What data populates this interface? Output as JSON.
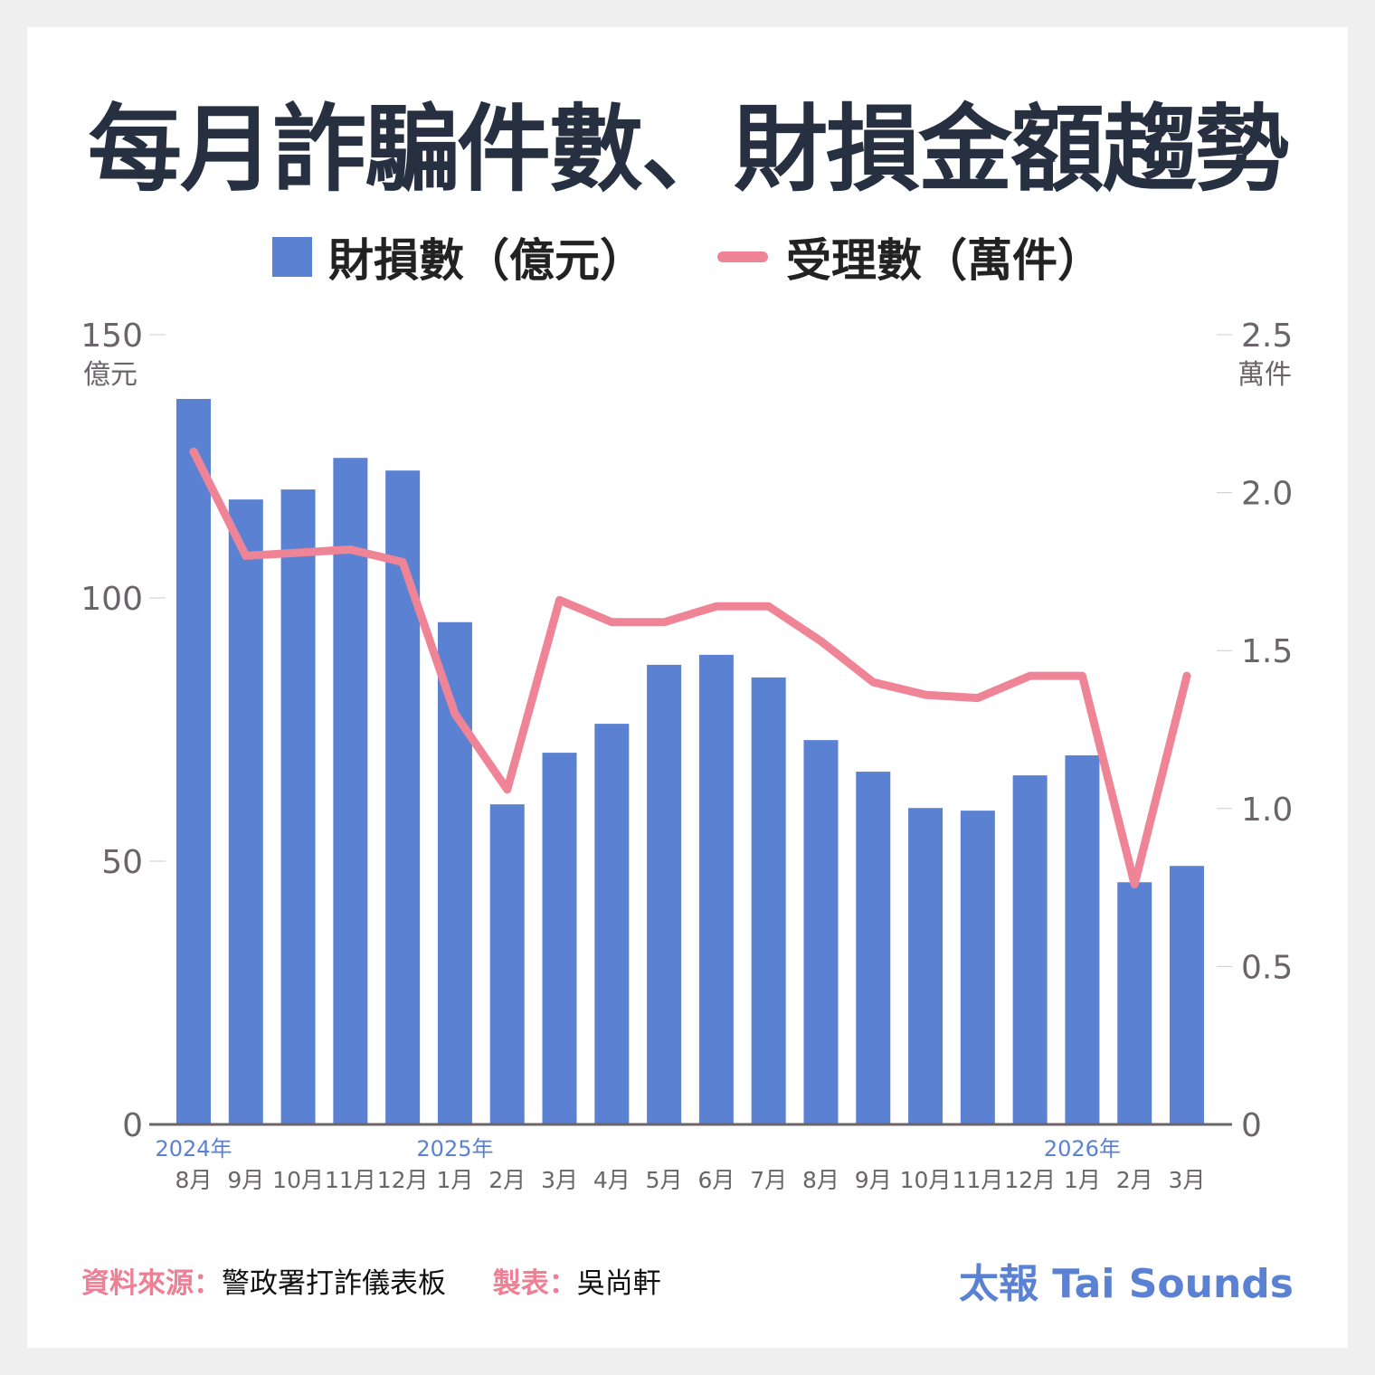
{
  "title": "每月詐騙件數、財損金額趨勢",
  "legend": {
    "bar": "財損數（億元）",
    "line": "受理數（萬件）"
  },
  "footer": {
    "source_label": "資料來源：",
    "source": "警政署打詐儀表板",
    "maker_label": "製表：",
    "maker": "吳尚軒",
    "brand": "太報 Tai Sounds"
  },
  "colors": {
    "bar": "#5b81d3",
    "line": "#f08497",
    "title": "#263040",
    "axis": "#6b6468"
  },
  "chart_data": {
    "type": "bar+line",
    "title": "每月詐騙件數、財損金額趨勢",
    "categories": [
      "8月",
      "9月",
      "10月",
      "11月",
      "12月",
      "1月",
      "2月",
      "3月",
      "4月",
      "5月",
      "6月",
      "7月",
      "8月",
      "9月",
      "10月",
      "11月",
      "12月",
      "1月",
      "2月",
      "3月"
    ],
    "year_labels": [
      {
        "index": 0,
        "label": "2024年"
      },
      {
        "index": 5,
        "label": "2025年"
      },
      {
        "index": 17,
        "label": "2026年"
      }
    ],
    "series": [
      {
        "name": "財損數（億元）",
        "type": "bar",
        "axis": "left",
        "values": [
          137.8,
          118.7,
          120.6,
          126.6,
          124.2,
          95.4,
          60.8,
          70.6,
          76.1,
          87.3,
          89.2,
          84.9,
          73.0,
          67.0,
          60.1,
          59.6,
          66.3,
          70.1,
          46.0,
          49.1
        ]
      },
      {
        "name": "受理數（萬件）",
        "type": "line",
        "axis": "right",
        "values": [
          2.13,
          1.8,
          1.81,
          1.82,
          1.78,
          1.3,
          1.06,
          1.66,
          1.59,
          1.59,
          1.64,
          1.64,
          1.53,
          1.4,
          1.36,
          1.35,
          1.42,
          1.42,
          0.76,
          1.42
        ]
      }
    ],
    "left_axis": {
      "unit": "億元",
      "ylim": [
        0,
        150
      ],
      "ticks": [
        "0",
        "50",
        "100",
        "150"
      ]
    },
    "right_axis": {
      "unit": "萬件",
      "ylim": [
        0,
        2.5
      ],
      "ticks": [
        "0",
        "0.5",
        "1.0",
        "1.5",
        "2.0",
        "2.5"
      ]
    },
    "grid": false,
    "legend_position": "top-center"
  }
}
